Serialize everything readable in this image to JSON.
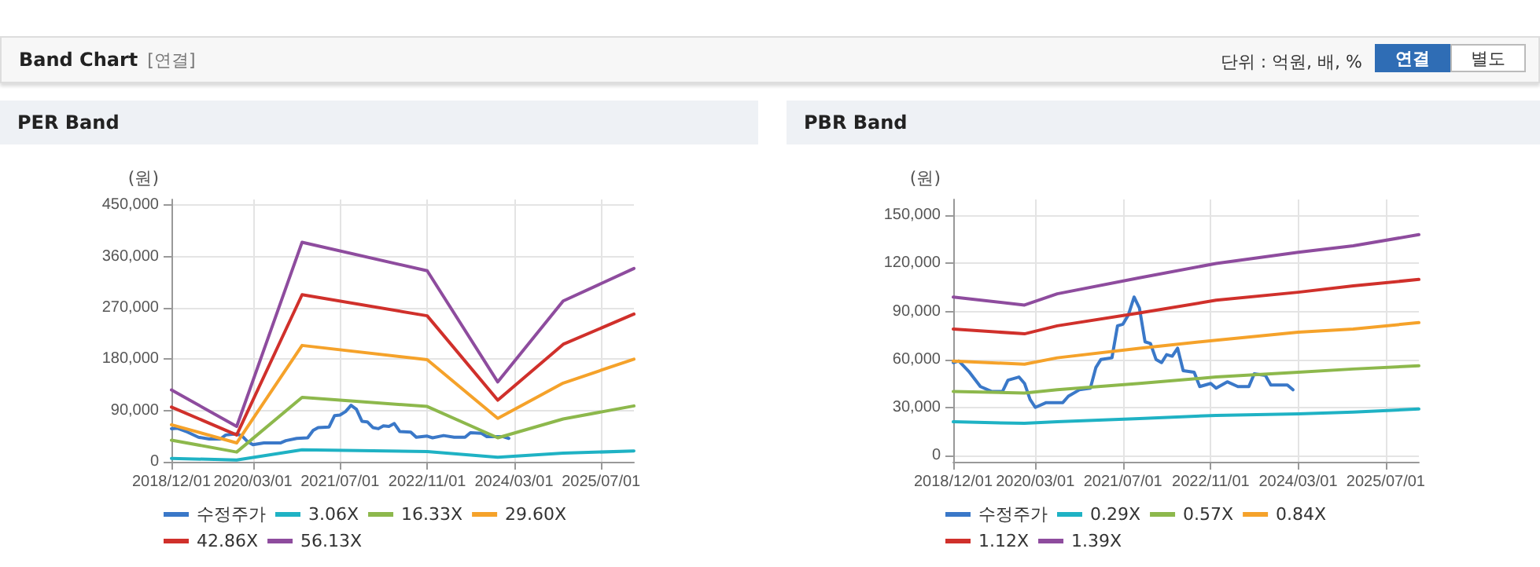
{
  "chart_data": [
    {
      "type": "other",
      "title": "Band Chart",
      "subtitle": "[연결]",
      "annotations": [
        "단위 : 억원, 배, %",
        "연결",
        "별도"
      ]
    },
    {
      "type": "line",
      "title": "PER Band",
      "ylabel": "(원)",
      "legend": "bottom",
      "grid": true,
      "marker": "none",
      "line_style": "solid",
      "xlim": [
        "2018-12",
        "2026-01"
      ],
      "xticks": [
        {
          "value": "2018-12",
          "label": "2018/12/01"
        },
        {
          "value": "2020-03",
          "label": "2020/03/01"
        },
        {
          "value": "2021-07",
          "label": "2021/07/01"
        },
        {
          "value": "2022-11",
          "label": "2022/11/01"
        },
        {
          "value": "2024-03",
          "label": "2024/03/01"
        },
        {
          "value": "2025-07",
          "label": "2025/07/01"
        }
      ],
      "ylim": [
        0,
        460000
      ],
      "yticks": [
        0,
        {
          "value": 90000,
          "label": "90,000"
        },
        {
          "value": 180000,
          "label": "180,000"
        },
        {
          "value": 270000,
          "label": "270,000"
        },
        {
          "value": 360000,
          "label": "360,000"
        },
        {
          "value": 450000,
          "label": "450,000"
        }
      ],
      "series": [
        {
          "name": "수정주가",
          "color": "#3a78c8",
          "x": [
            "2018-12",
            "2019-01",
            "2019-03",
            "2019-05",
            "2019-07",
            "2019-09",
            "2019-10",
            "2019-12",
            "2020-01",
            "2020-02",
            "2020-03",
            "2020-05",
            "2020-08",
            "2020-09",
            "2020-11",
            "2021-01",
            "2021-02",
            "2021-03",
            "2021-05",
            "2021-06",
            "2021-07",
            "2021-08",
            "2021-09",
            "2021-10",
            "2021-11",
            "2021-12",
            "2022-01",
            "2022-02",
            "2022-03",
            "2022-04",
            "2022-05",
            "2022-06",
            "2022-08",
            "2022-09",
            "2022-11",
            "2022-12",
            "2023-02",
            "2023-04",
            "2023-06",
            "2023-07",
            "2023-09",
            "2023-10",
            "2024-01",
            "2024-02"
          ],
          "values": [
            58000,
            59000,
            52000,
            43000,
            40000,
            40000,
            47000,
            49000,
            45000,
            35000,
            30000,
            33000,
            33000,
            37000,
            41000,
            42000,
            55000,
            60000,
            61000,
            81000,
            82000,
            88000,
            99000,
            92000,
            71000,
            70000,
            60000,
            58000,
            63000,
            62000,
            67000,
            53000,
            52000,
            43000,
            45000,
            42000,
            46000,
            43000,
            43000,
            51000,
            50000,
            44000,
            44000,
            41000
          ]
        },
        {
          "name": "3.06X",
          "color": "#1fb2c4",
          "x": [
            "2018-12",
            "2019-12",
            "2020-12",
            "2022-11",
            "2023-12",
            "2024-12",
            "2026-01"
          ],
          "values": [
            6000,
            3000,
            21000,
            18000,
            8000,
            15000,
            19000
          ]
        },
        {
          "name": "16.33X",
          "color": "#8db84c",
          "x": [
            "2018-12",
            "2019-12",
            "2020-12",
            "2022-11",
            "2023-12",
            "2024-12",
            "2026-01"
          ],
          "values": [
            38000,
            17000,
            113000,
            97000,
            42000,
            75000,
            98000
          ]
        },
        {
          "name": "29.60X",
          "color": "#f5a22a",
          "x": [
            "2018-12",
            "2019-12",
            "2020-12",
            "2022-11",
            "2023-12",
            "2024-12",
            "2026-01"
          ],
          "values": [
            65000,
            33000,
            204000,
            179000,
            76000,
            138000,
            180000
          ]
        },
        {
          "name": "42.86X",
          "color": "#d0302b",
          "x": [
            "2018-12",
            "2019-12",
            "2020-12",
            "2022-11",
            "2023-12",
            "2024-12",
            "2026-01"
          ],
          "values": [
            96000,
            47000,
            293000,
            256000,
            108000,
            206000,
            259000
          ]
        },
        {
          "name": "56.13X",
          "color": "#8e4c9e",
          "x": [
            "2018-12",
            "2019-12",
            "2020-12",
            "2022-11",
            "2023-12",
            "2024-12",
            "2026-01"
          ],
          "values": [
            126000,
            62000,
            385000,
            335000,
            140000,
            282000,
            339000
          ]
        }
      ]
    },
    {
      "type": "line",
      "title": "PBR Band",
      "ylabel": "(원)",
      "legend": "bottom",
      "grid": true,
      "marker": "none",
      "line_style": "solid",
      "xlim": [
        "2018-12",
        "2026-01"
      ],
      "xticks": [
        {
          "value": "2018-12",
          "label": "2018/12/01"
        },
        {
          "value": "2020-03",
          "label": "2020/03/01"
        },
        {
          "value": "2021-07",
          "label": "2021/07/01"
        },
        {
          "value": "2022-11",
          "label": "2022/11/01"
        },
        {
          "value": "2024-03",
          "label": "2024/03/01"
        },
        {
          "value": "2025-07",
          "label": "2025/07/01"
        }
      ],
      "ylim": [
        -4000,
        160000
      ],
      "yticks": [
        0,
        {
          "value": 30000,
          "label": "30,000"
        },
        {
          "value": 60000,
          "label": "60,000"
        },
        {
          "value": 90000,
          "label": "90,000"
        },
        {
          "value": 120000,
          "label": "120,000"
        },
        {
          "value": 150000,
          "label": "150,000"
        }
      ],
      "series": [
        {
          "name": "수정주가",
          "color": "#3a78c8",
          "x": [
            "2018-12",
            "2019-01",
            "2019-03",
            "2019-05",
            "2019-07",
            "2019-09",
            "2019-10",
            "2019-12",
            "2020-01",
            "2020-02",
            "2020-03",
            "2020-05",
            "2020-08",
            "2020-09",
            "2020-11",
            "2021-01",
            "2021-02",
            "2021-03",
            "2021-05",
            "2021-06",
            "2021-07",
            "2021-08",
            "2021-09",
            "2021-10",
            "2021-11",
            "2021-12",
            "2022-01",
            "2022-02",
            "2022-03",
            "2022-04",
            "2022-05",
            "2022-06",
            "2022-08",
            "2022-09",
            "2022-11",
            "2022-12",
            "2023-02",
            "2023-04",
            "2023-06",
            "2023-07",
            "2023-09",
            "2023-10",
            "2024-01",
            "2024-02"
          ],
          "values": [
            58000,
            59000,
            52000,
            43000,
            40000,
            40000,
            47000,
            49000,
            45000,
            35000,
            30000,
            33000,
            33000,
            37000,
            41000,
            42000,
            55000,
            60000,
            61000,
            81000,
            82000,
            88000,
            99000,
            92000,
            71000,
            70000,
            60000,
            58000,
            63000,
            62000,
            67000,
            53000,
            52000,
            43000,
            45000,
            42000,
            46000,
            43000,
            43000,
            51000,
            50000,
            44000,
            44000,
            41000
          ]
        },
        {
          "name": "0.29X",
          "color": "#1fb2c4",
          "x": [
            "2018-12",
            "2020-01",
            "2020-07",
            "2021-10",
            "2022-12",
            "2024-03",
            "2025-01",
            "2026-01"
          ],
          "values": [
            21000,
            20000,
            21000,
            23000,
            25000,
            26000,
            27000,
            29000
          ]
        },
        {
          "name": "0.57X",
          "color": "#8db84c",
          "x": [
            "2018-12",
            "2020-01",
            "2020-07",
            "2021-10",
            "2022-12",
            "2024-03",
            "2025-01",
            "2026-01"
          ],
          "values": [
            40000,
            39000,
            41000,
            45000,
            49000,
            52000,
            54000,
            56000
          ]
        },
        {
          "name": "0.84X",
          "color": "#f5a22a",
          "x": [
            "2018-12",
            "2020-01",
            "2020-07",
            "2021-10",
            "2022-12",
            "2024-03",
            "2025-01",
            "2026-01"
          ],
          "values": [
            59000,
            57000,
            61000,
            67000,
            72000,
            77000,
            79000,
            83000
          ]
        },
        {
          "name": "1.12X",
          "color": "#d0302b",
          "x": [
            "2018-12",
            "2020-01",
            "2020-07",
            "2021-10",
            "2022-12",
            "2024-03",
            "2025-01",
            "2026-01"
          ],
          "values": [
            79000,
            76000,
            81000,
            89000,
            97000,
            102000,
            106000,
            110000
          ]
        },
        {
          "name": "1.39X",
          "color": "#8e4c9e",
          "x": [
            "2018-12",
            "2020-01",
            "2020-07",
            "2021-10",
            "2022-12",
            "2024-03",
            "2025-01",
            "2026-01"
          ],
          "values": [
            99000,
            94000,
            101000,
            111000,
            120000,
            127000,
            131000,
            138000
          ]
        }
      ]
    }
  ]
}
